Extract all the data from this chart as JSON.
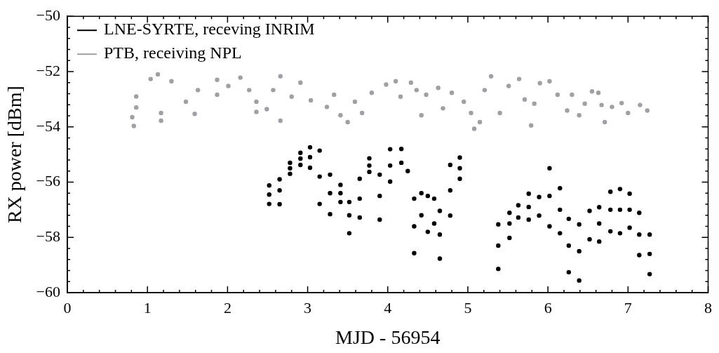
{
  "chart_data": {
    "type": "scatter",
    "xlabel": "MJD - 56954",
    "ylabel": "RX power [dBm]",
    "marker": "circle",
    "legend": "top left",
    "xlim": [
      0,
      8
    ],
    "ylim": [
      -60,
      -50
    ],
    "xticks": [
      0,
      {
        "value": 0.2,
        "label": null
      },
      {
        "value": 0.4,
        "label": null
      },
      {
        "value": 0.6,
        "label": null
      },
      {
        "value": 0.8,
        "label": null
      },
      1,
      {
        "value": 1.2,
        "label": null
      },
      {
        "value": 1.4,
        "label": null
      },
      {
        "value": 1.6,
        "label": null
      },
      {
        "value": 1.8,
        "label": null
      },
      2,
      {
        "value": 2.2,
        "label": null
      },
      {
        "value": 2.4,
        "label": null
      },
      {
        "value": 2.6,
        "label": null
      },
      {
        "value": 2.8,
        "label": null
      },
      3,
      {
        "value": 3.2,
        "label": null
      },
      {
        "value": 3.4,
        "label": null
      },
      {
        "value": 3.6,
        "label": null
      },
      {
        "value": 3.8,
        "label": null
      },
      4,
      {
        "value": 4.2,
        "label": null
      },
      {
        "value": 4.4,
        "label": null
      },
      {
        "value": 4.6,
        "label": null
      },
      {
        "value": 4.8,
        "label": null
      },
      5,
      {
        "value": 5.2,
        "label": null
      },
      {
        "value": 5.4,
        "label": null
      },
      {
        "value": 5.6,
        "label": null
      },
      {
        "value": 5.8,
        "label": null
      },
      6,
      {
        "value": 6.2,
        "label": null
      },
      {
        "value": 6.4,
        "label": null
      },
      {
        "value": 6.6,
        "label": null
      },
      {
        "value": 6.8,
        "label": null
      },
      7,
      {
        "value": 7.2,
        "label": null
      },
      {
        "value": 7.4,
        "label": null
      },
      {
        "value": 7.6,
        "label": null
      },
      {
        "value": 7.8,
        "label": null
      },
      8
    ],
    "yticks": [
      {
        "value": -60,
        "label": "−60"
      },
      {
        "value": -59.6,
        "label": null
      },
      {
        "value": -59.2,
        "label": null
      },
      {
        "value": -58.8,
        "label": null
      },
      {
        "value": -58.4,
        "label": null
      },
      {
        "value": -58,
        "label": "−58"
      },
      {
        "value": -57.6,
        "label": null
      },
      {
        "value": -57.2,
        "label": null
      },
      {
        "value": -56.8,
        "label": null
      },
      {
        "value": -56.4,
        "label": null
      },
      {
        "value": -56,
        "label": "−56"
      },
      {
        "value": -55.6,
        "label": null
      },
      {
        "value": -55.2,
        "label": null
      },
      {
        "value": -54.8,
        "label": null
      },
      {
        "value": -54.4,
        "label": null
      },
      {
        "value": -54,
        "label": "−54"
      },
      {
        "value": -53.6,
        "label": null
      },
      {
        "value": -53.2,
        "label": null
      },
      {
        "value": -52.8,
        "label": null
      },
      {
        "value": -52.4,
        "label": null
      },
      {
        "value": -52,
        "label": "−52"
      },
      {
        "value": -51.6,
        "label": null
      },
      {
        "value": -51.2,
        "label": null
      },
      {
        "value": -50.8,
        "label": null
      },
      {
        "value": -50.4,
        "label": null
      },
      {
        "value": -50,
        "label": "−50"
      }
    ],
    "series": [
      {
        "name": "LNE-SYRTE, receving INRIM",
        "color": "#000000",
        "x": [
          2.52,
          2.52,
          2.52,
          2.65,
          2.65,
          2.65,
          2.78,
          2.78,
          2.78,
          2.91,
          2.91,
          2.91,
          3.03,
          3.03,
          3.03,
          3.15,
          3.15,
          3.15,
          3.28,
          3.28,
          3.28,
          3.41,
          3.41,
          3.41,
          3.52,
          3.52,
          3.52,
          3.65,
          3.65,
          3.65,
          3.77,
          3.77,
          3.77,
          3.9,
          3.9,
          3.9,
          4.03,
          4.03,
          4.03,
          4.17,
          4.17,
          4.25,
          4.33,
          4.33,
          4.33,
          4.42,
          4.42,
          4.5,
          4.5,
          4.58,
          4.58,
          4.65,
          4.65,
          4.65,
          4.78,
          4.78,
          4.78,
          4.9,
          4.9,
          4.9,
          5.38,
          5.38,
          5.38,
          5.52,
          5.52,
          5.52,
          5.63,
          5.63,
          5.76,
          5.76,
          5.76,
          5.89,
          5.89,
          6.02,
          6.02,
          6.02,
          6.15,
          6.15,
          6.15,
          6.26,
          6.26,
          6.26,
          6.39,
          6.39,
          6.39,
          6.52,
          6.52,
          6.64,
          6.64,
          6.64,
          6.78,
          6.78,
          6.78,
          6.9,
          6.9,
          6.9,
          7.02,
          7.02,
          7.02,
          7.14,
          7.14,
          7.14,
          7.27,
          7.27,
          7.27
        ],
        "values": [
          -56.12,
          -56.45,
          -56.79,
          -55.9,
          -56.3,
          -56.8,
          -55.3,
          -55.5,
          -55.7,
          -54.94,
          -55.15,
          -55.38,
          -54.74,
          -55.1,
          -55.48,
          -54.86,
          -55.8,
          -56.79,
          -55.73,
          -56.4,
          -57.16,
          -56.1,
          -56.4,
          -56.72,
          -56.72,
          -57.2,
          -57.85,
          -55.88,
          -56.6,
          -57.28,
          -55.14,
          -55.4,
          -55.63,
          -55.73,
          -56.5,
          -57.36,
          -54.81,
          -55.4,
          -55.98,
          -54.8,
          -55.3,
          -55.6,
          -56.6,
          -57.6,
          -58.57,
          -56.4,
          -57.2,
          -56.5,
          -57.8,
          -56.6,
          -57.5,
          -57.04,
          -57.9,
          -58.77,
          -55.38,
          -56.3,
          -57.21,
          -55.11,
          -55.5,
          -55.88,
          -57.53,
          -58.3,
          -59.14,
          -57.11,
          -57.5,
          -58.02,
          -56.84,
          -57.28,
          -56.42,
          -56.9,
          -57.36,
          -56.54,
          -57.21,
          -55.5,
          -56.5,
          -57.6,
          -56.22,
          -57,
          -57.85,
          -57.33,
          -58.3,
          -59.26,
          -57.53,
          -58.5,
          -59.56,
          -57.04,
          -58.07,
          -56.91,
          -57.5,
          -58.15,
          -56.35,
          -57,
          -57.78,
          -56.25,
          -57,
          -57.85,
          -56.42,
          -57,
          -57.65,
          -57.11,
          -57.9,
          -58.64,
          -57.9,
          -58.6,
          -59.33
        ]
      },
      {
        "name": "PTB, receiving NPL",
        "color": "#a0a0a4",
        "x": [
          0.81,
          0.83,
          0.86,
          0.86,
          1.04,
          1.13,
          1.17,
          1.17,
          1.3,
          1.48,
          1.59,
          1.63,
          1.87,
          1.87,
          2.01,
          2.16,
          2.27,
          2.36,
          2.36,
          2.49,
          2.57,
          2.66,
          2.66,
          2.8,
          2.91,
          3.04,
          3.24,
          3.33,
          3.41,
          3.5,
          3.59,
          3.68,
          3.8,
          3.98,
          4.1,
          4.16,
          4.29,
          4.36,
          4.42,
          4.48,
          4.63,
          4.69,
          4.8,
          4.95,
          5.04,
          5.08,
          5.15,
          5.21,
          5.29,
          5.4,
          5.51,
          5.64,
          5.71,
          5.79,
          5.83,
          5.9,
          6.02,
          6.12,
          6.24,
          6.3,
          6.39,
          6.46,
          6.55,
          6.63,
          6.67,
          6.71,
          6.8,
          6.92,
          7.0,
          7.15,
          7.24
        ],
        "values": [
          -53.65,
          -53.97,
          -52.9,
          -53.3,
          -52.27,
          -52.1,
          -53.5,
          -53.78,
          -52.35,
          -53.09,
          -53.53,
          -52.67,
          -52.3,
          -52.84,
          -52.52,
          -52.22,
          -52.67,
          -53.09,
          -53.46,
          -53.36,
          -52.67,
          -52.17,
          -53.78,
          -52.91,
          -52.4,
          -53.04,
          -53.28,
          -52.84,
          -53.58,
          -53.83,
          -53.09,
          -53.5,
          -52.77,
          -52.47,
          -52.35,
          -52.91,
          -52.4,
          -52.67,
          -53.58,
          -52.84,
          -52.59,
          -53.33,
          -52.77,
          -53.09,
          -53.5,
          -54.07,
          -53.83,
          -52.67,
          -52.17,
          -53.5,
          -52.52,
          -52.27,
          -53.01,
          -53.95,
          -53.16,
          -52.42,
          -52.35,
          -52.84,
          -53.41,
          -52.84,
          -53.58,
          -53.16,
          -52.72,
          -52.77,
          -53.21,
          -53.83,
          -53.28,
          -53.14,
          -53.5,
          -53.21,
          -53.41
        ]
      }
    ]
  }
}
